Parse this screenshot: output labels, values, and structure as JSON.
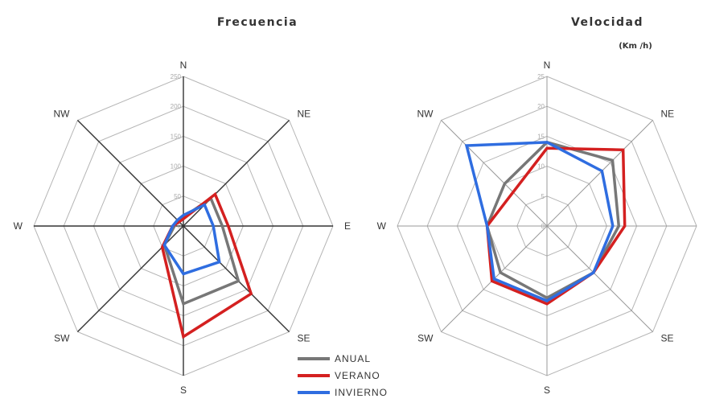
{
  "legend": {
    "items": [
      {
        "label": "ANUAL",
        "color": "#777777"
      },
      {
        "label": "VERANO",
        "color": "#d42020"
      },
      {
        "label": "INVIERNO",
        "color": "#2f6de0"
      }
    ]
  },
  "chart_data": [
    {
      "type": "radar",
      "title": "Frecuencia",
      "subtitle": "",
      "directions": [
        "N",
        "NE",
        "E",
        "SE",
        "S",
        "SW",
        "W",
        "NW"
      ],
      "rlim": [
        0,
        250
      ],
      "ticks": [
        "0",
        "50",
        "100",
        "150",
        "200",
        "250"
      ],
      "series": [
        {
          "name": "ANUAL",
          "values": [
            15,
            65,
            65,
            130,
            130,
            45,
            15,
            12
          ]
        },
        {
          "name": "VERANO",
          "values": [
            12,
            75,
            75,
            160,
            185,
            50,
            18,
            10
          ]
        },
        {
          "name": "INVIERNO",
          "values": [
            18,
            50,
            50,
            85,
            80,
            45,
            18,
            14
          ]
        }
      ]
    },
    {
      "type": "radar",
      "title": "Velocidad",
      "subtitle": "(Km /h)",
      "directions": [
        "N",
        "NE",
        "E",
        "SE",
        "S",
        "SW",
        "W",
        "NW"
      ],
      "rlim": [
        0,
        25
      ],
      "ticks": [
        "0",
        "5",
        "10",
        "15",
        "20",
        "25"
      ],
      "series": [
        {
          "name": "ANUAL",
          "values": [
            14,
            15.5,
            12,
            11,
            12,
            11,
            10,
            10
          ]
        },
        {
          "name": "VERANO",
          "values": [
            13,
            18,
            13,
            11,
            13,
            13,
            10,
            8
          ]
        },
        {
          "name": "INVIERNO",
          "values": [
            14,
            13,
            11,
            11,
            12.5,
            12.5,
            10,
            19
          ]
        }
      ]
    }
  ]
}
